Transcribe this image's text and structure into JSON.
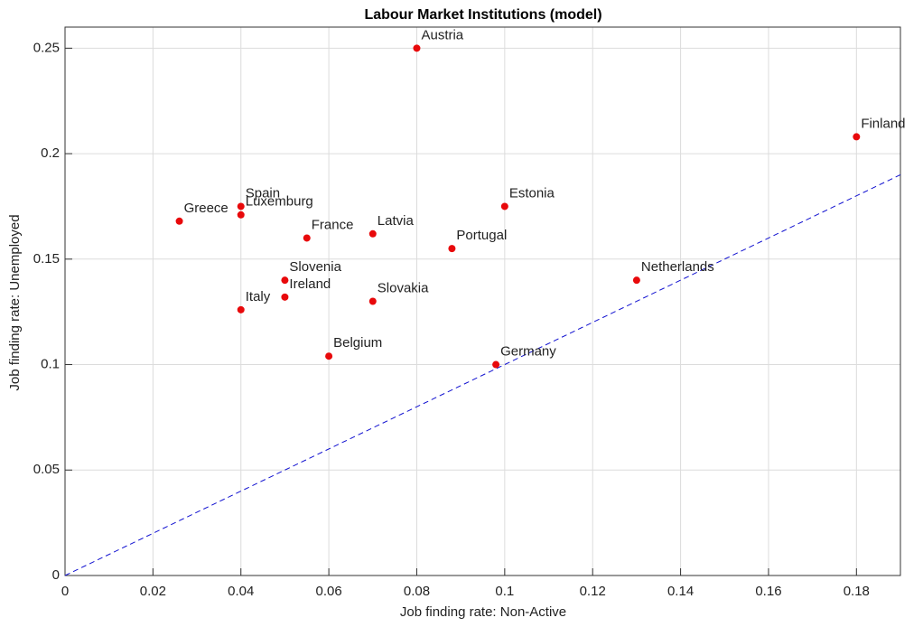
{
  "chart_data": {
    "type": "scatter",
    "title": "Labour Market Institutions (model)",
    "x_label": "Job finding rate: Non-Active",
    "y_label": "Job finding rate: Unemployed",
    "labels": [
      "Austria",
      "Finland",
      "Spain",
      "Luxemburg",
      "Greece",
      "France",
      "Latvia",
      "Estonia",
      "Portugal",
      "Netherlands",
      "Slovenia",
      "Ireland",
      "Italy",
      "Slovakia",
      "Belgium",
      "Germany"
    ],
    "x": [
      0.08,
      0.18,
      0.04,
      0.04,
      0.026,
      0.055,
      0.07,
      0.1,
      0.088,
      0.13,
      0.05,
      0.05,
      0.04,
      0.07,
      0.06,
      0.098
    ],
    "y": [
      0.25,
      0.208,
      0.175,
      0.171,
      0.168,
      0.16,
      0.162,
      0.175,
      0.155,
      0.14,
      0.14,
      0.132,
      0.126,
      0.13,
      0.104,
      0.1
    ],
    "color": "#e8090b",
    "reference_line": {
      "x": [
        0,
        0.19
      ],
      "y": [
        0,
        0.19
      ],
      "color": "#1010d0"
    },
    "xlim": [
      0,
      0.19
    ],
    "ylim": [
      0,
      0.26
    ],
    "xticks": [
      0,
      0.02,
      0.04,
      0.06,
      0.08,
      0.1,
      0.12,
      0.14,
      0.16,
      0.18
    ],
    "yticks": [
      0,
      0.05,
      0.1,
      0.15,
      0.2,
      0.25
    ],
    "grid": true
  }
}
